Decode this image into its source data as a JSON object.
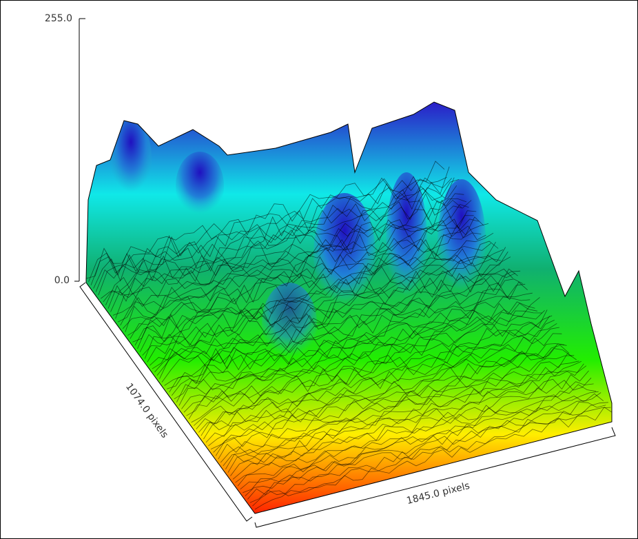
{
  "plot": {
    "z_axis": {
      "max_label": "255.0",
      "min_label": "0.0"
    },
    "y_axis_label": "1074.0 pixels",
    "x_axis_label": "1845.0 pixels"
  }
}
